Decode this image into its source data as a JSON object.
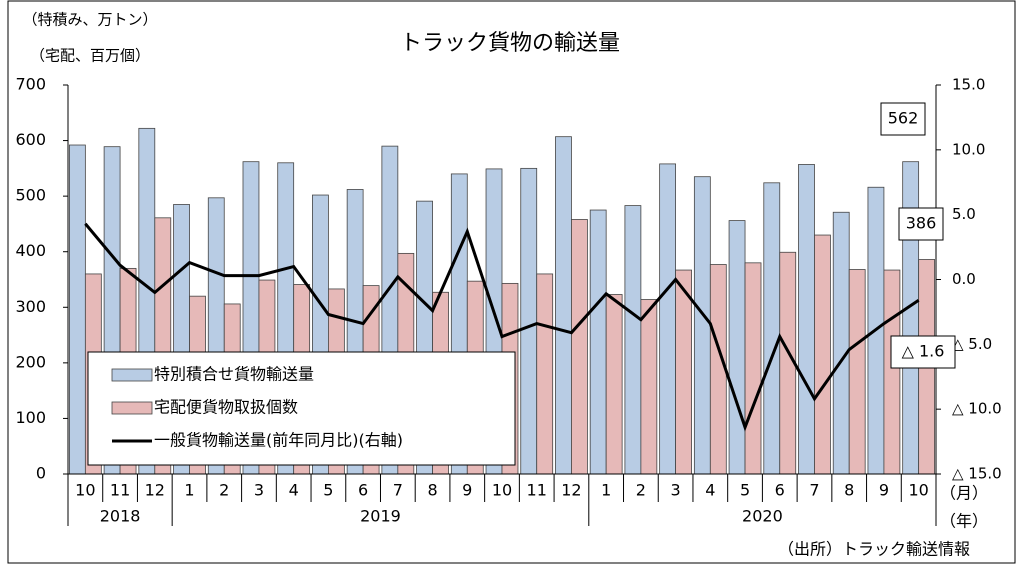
{
  "chart_data": {
    "type": "bar_line",
    "title": "トラック貨物の輸送量",
    "y_label_lines": [
      "（特積み、万トン）",
      "（宅配、百万個）"
    ],
    "x_unit": "（月）",
    "year_unit": "（年）",
    "source": "（出所）トラック輸送情報",
    "categories": [
      "10",
      "11",
      "12",
      "1",
      "2",
      "3",
      "4",
      "5",
      "6",
      "7",
      "8",
      "9",
      "10",
      "11",
      "12",
      "1",
      "2",
      "3",
      "4",
      "5",
      "6",
      "7",
      "8",
      "9",
      "10"
    ],
    "years": [
      "2018",
      null,
      null,
      "2019",
      null,
      null,
      null,
      null,
      null,
      null,
      null,
      null,
      null,
      null,
      null,
      "2020",
      null,
      null,
      null,
      null,
      null,
      null,
      null,
      null,
      null
    ],
    "series": [
      {
        "name": "特別積合せ貨物輸送量",
        "type": "bar",
        "color": "#b8cce4",
        "values": [
          592,
          589,
          622,
          485,
          497,
          562,
          560,
          502,
          512,
          590,
          491,
          540,
          549,
          550,
          607,
          475,
          483,
          558,
          535,
          456,
          524,
          557,
          471,
          516,
          562
        ],
        "value_labels": [
          null,
          null,
          null,
          null,
          null,
          null,
          null,
          null,
          null,
          null,
          null,
          null,
          null,
          null,
          null,
          null,
          null,
          null,
          null,
          null,
          null,
          null,
          null,
          null,
          "562"
        ]
      },
      {
        "name": "宅配便貨物取扱個数",
        "type": "bar",
        "color": "#e6b9b8",
        "values": [
          360,
          370,
          461,
          320,
          306,
          349,
          341,
          333,
          339,
          397,
          327,
          347,
          343,
          360,
          458,
          323,
          314,
          367,
          377,
          380,
          399,
          430,
          368,
          367,
          386
        ],
        "value_labels": [
          null,
          null,
          null,
          null,
          null,
          null,
          null,
          null,
          null,
          null,
          null,
          null,
          null,
          null,
          null,
          null,
          null,
          null,
          null,
          null,
          null,
          null,
          null,
          null,
          "386"
        ]
      },
      {
        "name": "一般貨物輸送量(前年同月比)(右軸)",
        "type": "line",
        "axis": "y2",
        "color": "#000000",
        "values": [
          4.3,
          1.1,
          -1.0,
          1.3,
          0.3,
          0.3,
          1.0,
          -2.7,
          -3.4,
          0.2,
          -2.4,
          3.7,
          -4.4,
          -3.4,
          -4.1,
          -1.1,
          -3.1,
          0.0,
          -3.4,
          -11.4,
          -4.4,
          -9.2,
          -5.4,
          -3.4,
          -1.6
        ],
        "value_labels": [
          null,
          null,
          null,
          null,
          null,
          null,
          null,
          null,
          null,
          null,
          null,
          null,
          null,
          null,
          null,
          null,
          null,
          null,
          null,
          null,
          null,
          null,
          null,
          null,
          "△ 1.6"
        ]
      }
    ],
    "ylim": [
      0,
      700
    ],
    "yticks": [
      0,
      100,
      200,
      300,
      400,
      500,
      600,
      700
    ],
    "y2lim": [
      -15,
      15
    ],
    "y2ticks": [
      {
        "value": -15,
        "label": "△ 15.0"
      },
      {
        "value": -10,
        "label": "△ 10.0"
      },
      {
        "value": -5,
        "label": "△ 5.0"
      },
      {
        "value": 0,
        "label": "0.0"
      },
      {
        "value": 5,
        "label": "5.0"
      },
      {
        "value": 10,
        "label": "10.0"
      },
      {
        "value": 15,
        "label": "15.0"
      }
    ],
    "grid": false,
    "legend": "lower left"
  }
}
